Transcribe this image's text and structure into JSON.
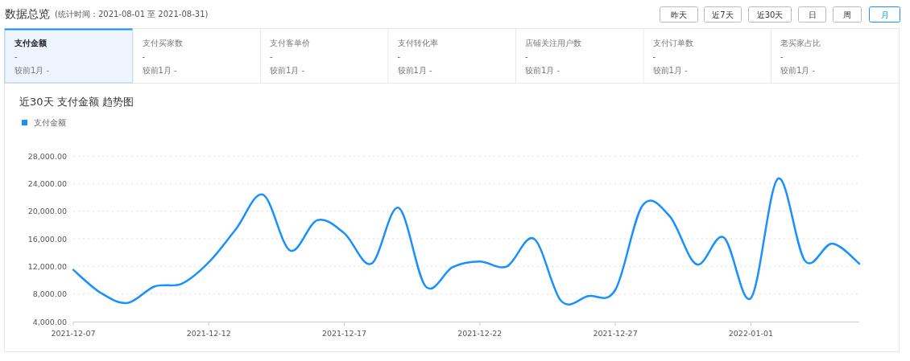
{
  "chart_data": [
    {
      "type": "other",
      "title": "数据总览",
      "subtitle": "(统计时间：2021-08-01 至 2021-08-31)",
      "categories": [
        "支付金额",
        "支付买家数",
        "支付客单价",
        "支付转化率",
        "店铺关注用户数",
        "支付订单数",
        "老买家占比"
      ],
      "annotations": [
        "昨天",
        "近7天",
        "近30天",
        "日",
        "周",
        "月",
        "-",
        "较前1月 -",
        "-",
        "较前1月 -",
        "-",
        "较前1月 -",
        "-",
        "较前1月 -",
        "-",
        "较前1月 -",
        "-",
        "较前1月 -",
        "-",
        "较前1月 -"
      ]
    },
    {
      "type": "line",
      "title": "近30天 支付金额 趋势图",
      "legend": "top left",
      "grid": "y",
      "marker": "none",
      "line_style": "solid",
      "x": [
        "2021-12-07",
        "2021-12-08",
        "2021-12-09",
        "2021-12-10",
        "2021-12-11",
        "2021-12-12",
        "2021-12-13",
        "2021-12-14",
        "2021-12-15",
        "2021-12-16",
        "2021-12-17",
        "2021-12-18",
        "2021-12-19",
        "2021-12-20",
        "2021-12-21",
        "2021-12-22",
        "2021-12-23",
        "2021-12-24",
        "2021-12-25",
        "2021-12-26",
        "2021-12-27",
        "2021-12-28",
        "2021-12-29",
        "2021-12-30",
        "2021-12-31",
        "2022-01-01",
        "2022-01-02",
        "2022-01-03",
        "2022-01-04",
        "2022-01-05"
      ],
      "series": [
        {
          "name": "支付金额",
          "color": "#1890ff",
          "values": [
            11500,
            8200,
            6700,
            9100,
            9500,
            12600,
            17400,
            22400,
            14300,
            18700,
            16800,
            12400,
            20500,
            9100,
            11900,
            12700,
            12000,
            16000,
            7000,
            7700,
            8600,
            20800,
            19300,
            12300,
            16200,
            7400,
            24700,
            12800,
            15300,
            12400
          ]
        }
      ],
      "xlim": [
        "2021-12-07",
        "2022-01-05"
      ],
      "xticks": [
        "2021-12-07",
        "2021-12-12",
        "2021-12-17",
        "2021-12-22",
        "2021-12-27",
        "2022-01-01"
      ],
      "ylim": [
        4000,
        28000
      ],
      "yticks": [
        {
          "value": 4000,
          "label": "4,000.00"
        },
        {
          "value": 8000,
          "label": "8,000.00"
        },
        {
          "value": 12000,
          "label": "12,000.00"
        },
        {
          "value": 16000,
          "label": "16,000.00"
        },
        {
          "value": 20000,
          "label": "20,000.00"
        },
        {
          "value": 24000,
          "label": "24,000.00"
        },
        {
          "value": 28000,
          "label": "28,000.00"
        }
      ]
    }
  ]
}
